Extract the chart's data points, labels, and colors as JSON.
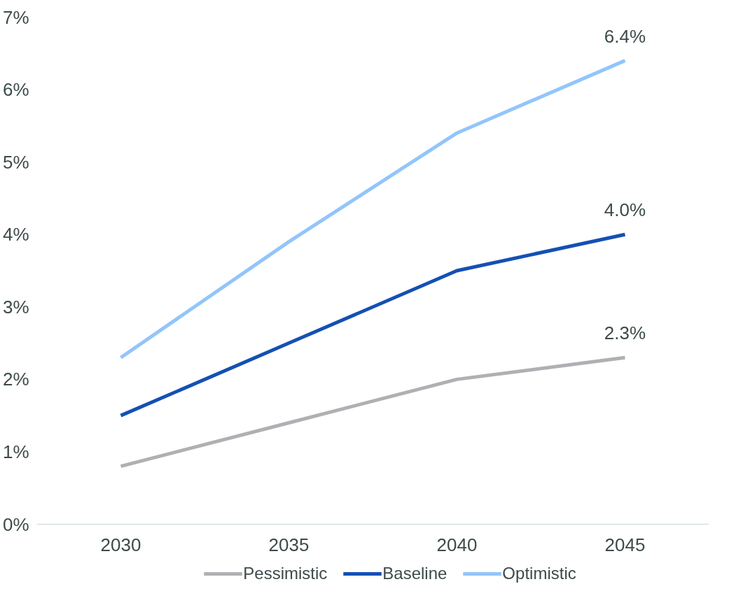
{
  "chart_data": {
    "type": "line",
    "categories": [
      "2030",
      "2035",
      "2040",
      "2045"
    ],
    "series": [
      {
        "name": "Pessimistic",
        "color": "#aeb0b3",
        "values": [
          0.8,
          1.4,
          2.0,
          2.3
        ],
        "value_labels": [
          null,
          null,
          null,
          "2.3%"
        ]
      },
      {
        "name": "Baseline",
        "color": "#1450b4",
        "values": [
          1.5,
          2.5,
          3.5,
          4.0
        ],
        "value_labels": [
          null,
          null,
          null,
          "4.0%"
        ]
      },
      {
        "name": "Optimistic",
        "color": "#92c5fb",
        "values": [
          2.3,
          3.9,
          5.4,
          6.4
        ],
        "value_labels": [
          null,
          null,
          null,
          "6.4%"
        ]
      }
    ],
    "ylim": [
      0,
      7
    ],
    "yticks": [
      {
        "value": 0,
        "label": "0%"
      },
      {
        "value": 1,
        "label": "1%"
      },
      {
        "value": 2,
        "label": "2%"
      },
      {
        "value": 3,
        "label": "3%"
      },
      {
        "value": 4,
        "label": "4%"
      },
      {
        "value": 5,
        "label": "5%"
      },
      {
        "value": 6,
        "label": "6%"
      },
      {
        "value": 7,
        "label": "7%"
      }
    ],
    "grid": false,
    "legend": "bottom",
    "marker": "none",
    "line_style": "solid"
  }
}
